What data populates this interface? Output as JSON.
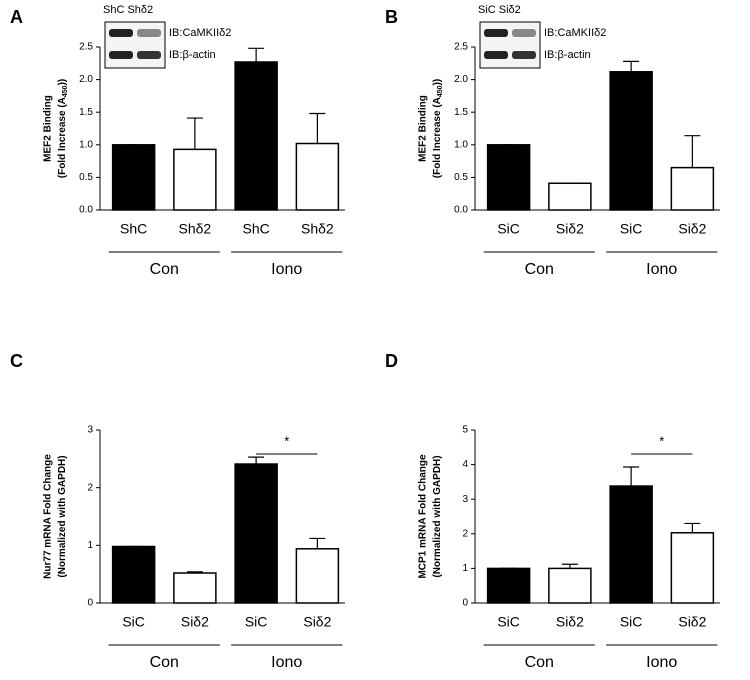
{
  "chart_data": [
    {
      "type": "bar",
      "panel": "A",
      "y_label": [
        "MEF2 Binding",
        "(Fold Increase (A",
        "450",
        "))"
      ],
      "categories": [
        "ShC",
        "Shδ2",
        "ShC",
        "Shδ2"
      ],
      "values": [
        1.0,
        0.93,
        2.27,
        1.02
      ],
      "errors": [
        0,
        0.48,
        0.21,
        0.46
      ],
      "colors": [
        "#000000",
        "#ffffff",
        "#000000",
        "#ffffff"
      ],
      "groups": [
        "Con",
        "Iono"
      ],
      "ylim": [
        0,
        2.5
      ],
      "yticks": [
        {
          "value": 0,
          "label": "0.0"
        },
        0.5,
        {
          "value": 1,
          "label": "1.0"
        },
        1.5,
        {
          "value": 2,
          "label": "2.0"
        },
        2.5
      ],
      "blot": {
        "lanes": "ShC Shδ2",
        "bands": [
          "IB:CaMKIIδ2",
          "IB:β-actin"
        ]
      }
    },
    {
      "type": "bar",
      "panel": "B",
      "y_label": [
        "MEF2 Binding",
        "(Fold Increase (A",
        "450",
        "))"
      ],
      "categories": [
        "SiC",
        "Siδ2",
        "SiC",
        "Siδ2"
      ],
      "values": [
        1.0,
        0.41,
        2.12,
        0.65
      ],
      "errors": [
        0,
        0,
        0.16,
        0.49
      ],
      "colors": [
        "#000000",
        "#ffffff",
        "#000000",
        "#ffffff"
      ],
      "groups": [
        "Con",
        "Iono"
      ],
      "ylim": [
        0,
        2.5
      ],
      "yticks": [
        {
          "value": 0,
          "label": "0.0"
        },
        0.5,
        {
          "value": 1,
          "label": "1.0"
        },
        1.5,
        {
          "value": 2,
          "label": "2.0"
        },
        2.5
      ],
      "blot": {
        "lanes": "SiC Siδ2",
        "bands": [
          "IB:CaMKIIδ2",
          "IB:β-actin"
        ]
      }
    },
    {
      "type": "bar",
      "panel": "C",
      "y_label": [
        "Nur77 mRNA Fold Change",
        "(Normalized with GAPDH)"
      ],
      "categories": [
        "SiC",
        "Siδ2",
        "SiC",
        "Siδ2"
      ],
      "values": [
        0.98,
        0.52,
        2.41,
        0.94
      ],
      "errors": [
        0,
        0.02,
        0.12,
        0.18
      ],
      "colors": [
        "#000000",
        "#ffffff",
        "#000000",
        "#ffffff"
      ],
      "groups": [
        "Con",
        "Iono"
      ],
      "ylim": [
        0,
        3
      ],
      "yticks": [
        0,
        1,
        2,
        3
      ],
      "significance": "*"
    },
    {
      "type": "bar",
      "panel": "D",
      "y_label": [
        "MCP1 mRNA Fold Change",
        "(Normalized with GAPDH)"
      ],
      "categories": [
        "SiC",
        "Siδ2",
        "SiC",
        "Siδ2"
      ],
      "values": [
        1.0,
        1.0,
        3.38,
        2.03
      ],
      "errors": [
        0,
        0.12,
        0.55,
        0.27
      ],
      "colors": [
        "#000000",
        "#ffffff",
        "#000000",
        "#ffffff"
      ],
      "groups": [
        "Con",
        "Iono"
      ],
      "ylim": [
        0,
        5
      ],
      "yticks": [
        0,
        1,
        2,
        3,
        4,
        5
      ],
      "significance": "*"
    }
  ]
}
